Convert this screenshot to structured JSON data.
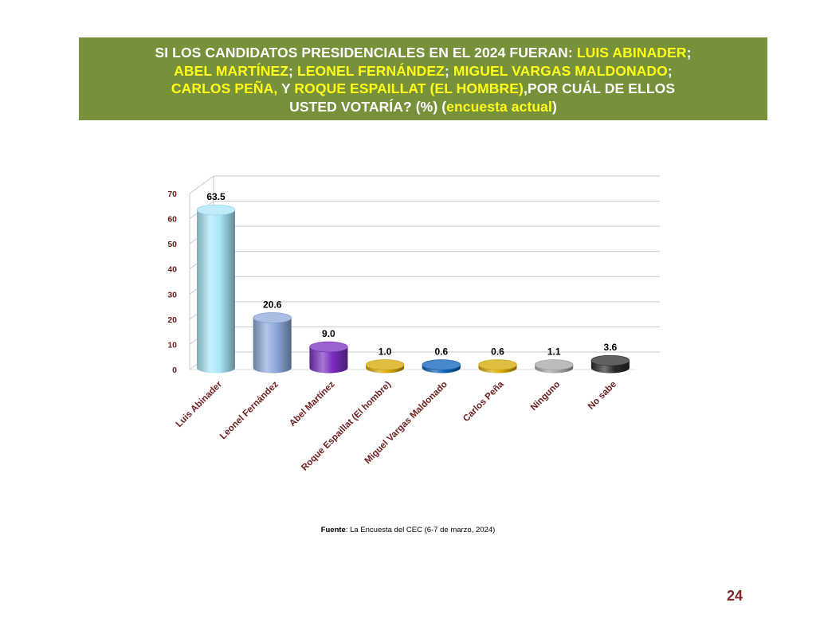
{
  "header": {
    "title_segments": [
      {
        "text": "SI LOS CANDIDATOS PRESIDENCIALES EN EL 2024 FUERAN: ",
        "highlight": false
      },
      {
        "text": "LUIS ABINADER",
        "highlight": true
      },
      {
        "text": ";",
        "highlight": false,
        "break_after": true
      },
      {
        "text": "ABEL MARTÍNEZ",
        "highlight": true
      },
      {
        "text": "; ",
        "highlight": false
      },
      {
        "text": "LEONEL FERNÁNDEZ",
        "highlight": true
      },
      {
        "text": "; ",
        "highlight": false
      },
      {
        "text": "MIGUEL VARGAS MALDONADO",
        "highlight": true
      },
      {
        "text": ";",
        "highlight": false,
        "break_after": true
      },
      {
        "text": "CARLOS PEÑA,",
        "highlight": true
      },
      {
        "text": " Y ",
        "highlight": false
      },
      {
        "text": "ROQUE ESPAILLAT (EL HOMBRE)",
        "highlight": true
      },
      {
        "text": ",POR CUÁL DE ELLOS",
        "highlight": false,
        "break_after": true
      },
      {
        "text": "USTED VOTARÍA? (%) (",
        "highlight": false
      },
      {
        "text": "encuesta actual",
        "highlight": true
      },
      {
        "text": ")",
        "highlight": false
      }
    ],
    "background_color": "#76913a",
    "highlight_color": "#ffff1a"
  },
  "chart_data": {
    "type": "bar",
    "title": "",
    "xlabel": "",
    "ylabel": "",
    "ylim": [
      0,
      70
    ],
    "yticks": [
      "0",
      "10",
      "20",
      "30",
      "40",
      "50",
      "60",
      "70"
    ],
    "grid": true,
    "style": "3d-cylinder",
    "categories": [
      "Luis Abinader",
      "Leonel Fernández",
      "Abel Martínez",
      "Roque Espaillat (El hombre)",
      "Miguel Vargas Maldonado",
      "Carlos Peña",
      "Ninguno",
      "No sabe"
    ],
    "values": [
      63.5,
      20.6,
      9.0,
      1.0,
      0.6,
      0.6,
      1.1,
      3.6
    ],
    "value_labels": [
      "63.5",
      "20.6",
      "9.0",
      "1.0",
      "0.6",
      "0.6",
      "1.1",
      "3.6"
    ],
    "bar_colors": [
      "#a8e6f8",
      "#8ea8dc",
      "#7a2ec0",
      "#d6a800",
      "#0a62b8",
      "#d6a800",
      "#a6a6a6",
      "#2b2b2b"
    ],
    "tick_label_color": "#6b1d1d"
  },
  "footer": {
    "source_label": "Fuente",
    "source_text": ": La Encuesta del CEC (6-7 de marzo, 2024)",
    "page_number": "24"
  }
}
